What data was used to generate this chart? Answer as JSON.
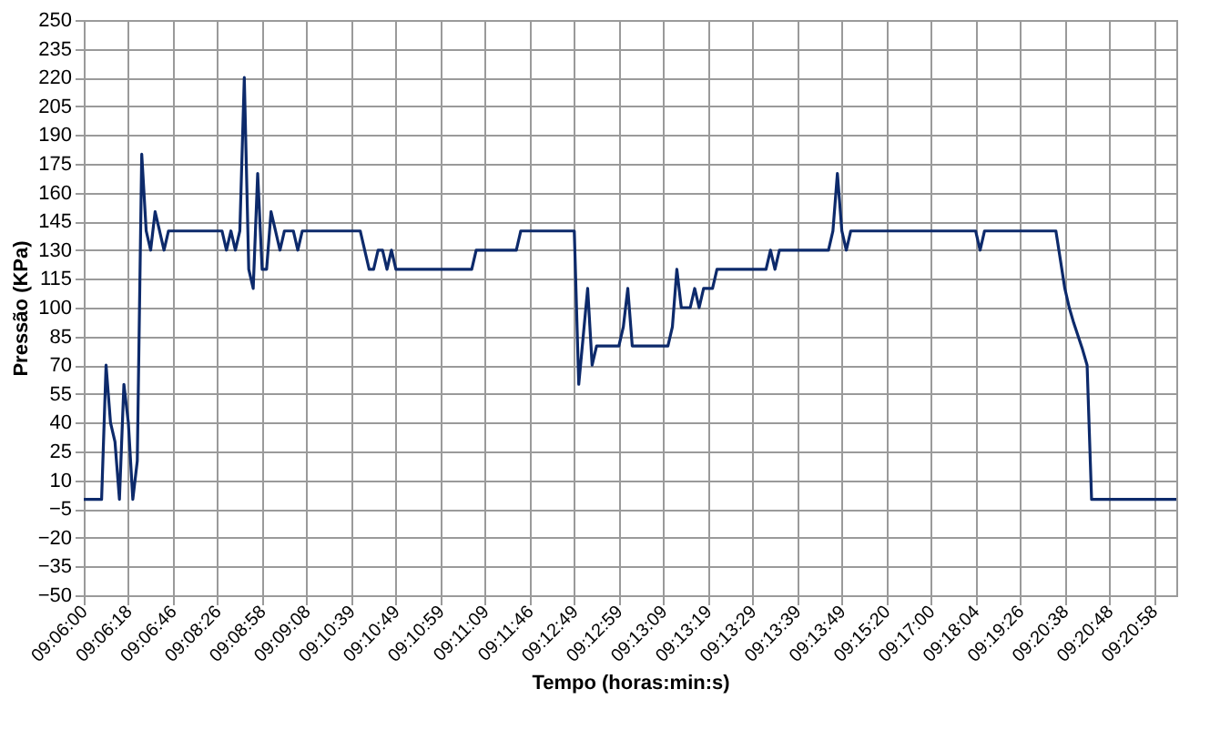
{
  "chart_data": {
    "type": "line",
    "xlabel": "Tempo (horas:min:s)",
    "ylabel": "Pressão (KPa)",
    "color": "#0d2a6b",
    "grid": true,
    "ylim": [
      -50,
      250
    ],
    "yticks": [
      -50,
      -35,
      -20,
      -5,
      10,
      25,
      40,
      55,
      70,
      85,
      100,
      115,
      130,
      145,
      160,
      175,
      190,
      205,
      220,
      235,
      250
    ],
    "categories": [
      "09:06:00",
      null,
      null,
      null,
      null,
      null,
      null,
      null,
      null,
      null,
      "09:06:18",
      null,
      null,
      null,
      null,
      null,
      null,
      null,
      null,
      null,
      "09:06:46",
      null,
      null,
      null,
      null,
      null,
      null,
      null,
      null,
      null,
      "09:08:26",
      null,
      null,
      null,
      null,
      null,
      null,
      null,
      null,
      null,
      "09:08:58",
      null,
      null,
      null,
      null,
      null,
      null,
      null,
      null,
      null,
      "09:09:08",
      null,
      null,
      null,
      null,
      null,
      null,
      null,
      null,
      null,
      "09:10:39",
      null,
      null,
      null,
      null,
      null,
      null,
      null,
      null,
      null,
      "09:10:49",
      null,
      null,
      null,
      null,
      null,
      null,
      null,
      null,
      null,
      "09:10:59",
      null,
      null,
      null,
      null,
      null,
      null,
      null,
      null,
      null,
      "09:11:09",
      null,
      null,
      null,
      null,
      null,
      null,
      null,
      null,
      null,
      "09:11:46",
      null,
      null,
      null,
      null,
      null,
      null,
      null,
      null,
      null,
      "09:12:49",
      null,
      null,
      null,
      null,
      null,
      null,
      null,
      null,
      null,
      "09:12:59",
      null,
      null,
      null,
      null,
      null,
      null,
      null,
      null,
      null,
      "09:13:09",
      null,
      null,
      null,
      null,
      null,
      null,
      null,
      null,
      null,
      "09:13:19",
      null,
      null,
      null,
      null,
      null,
      null,
      null,
      null,
      null,
      "09:13:29",
      null,
      null,
      null,
      null,
      null,
      null,
      null,
      null,
      null,
      "09:13:39",
      null,
      null,
      null,
      null,
      null,
      null,
      null,
      null,
      null,
      "09:13:49",
      null,
      null,
      null,
      null,
      null,
      null,
      null,
      null,
      null,
      "09:15:20",
      null,
      null,
      null,
      null,
      null,
      null,
      null,
      null,
      null,
      "09:17:00",
      null,
      null,
      null,
      null,
      null,
      null,
      null,
      null,
      null,
      "09:18:04",
      null,
      null,
      null,
      null,
      null,
      null,
      null,
      null,
      null,
      "09:19:26",
      null,
      null,
      null,
      null,
      null,
      null,
      null,
      null,
      null,
      "09:20:38",
      null,
      null,
      null,
      null,
      null,
      null,
      null,
      null,
      null,
      "09:20:48",
      null,
      null,
      null,
      null,
      null,
      null,
      null,
      null,
      null,
      "09:20:58",
      null,
      null,
      null,
      null,
      null
    ],
    "values": [
      0,
      0,
      0,
      0,
      0,
      70,
      40,
      30,
      0,
      60,
      40,
      0,
      20,
      180,
      140,
      130,
      150,
      140,
      130,
      140,
      140,
      140,
      140,
      140,
      140,
      140,
      140,
      140,
      140,
      140,
      140,
      140,
      130,
      140,
      130,
      140,
      220,
      120,
      110,
      170,
      120,
      120,
      150,
      140,
      130,
      140,
      140,
      140,
      130,
      140,
      140,
      140,
      140,
      140,
      140,
      140,
      140,
      140,
      140,
      140,
      140,
      140,
      140,
      130,
      120,
      120,
      130,
      130,
      120,
      130,
      120,
      120,
      120,
      120,
      120,
      120,
      120,
      120,
      120,
      120,
      120,
      120,
      120,
      120,
      120,
      120,
      120,
      120,
      130,
      130,
      130,
      130,
      130,
      130,
      130,
      130,
      130,
      130,
      140,
      140,
      140,
      140,
      140,
      140,
      140,
      140,
      140,
      140,
      140,
      140,
      140,
      60,
      85,
      110,
      70,
      80,
      80,
      80,
      80,
      80,
      80,
      90,
      110,
      80,
      80,
      80,
      80,
      80,
      80,
      80,
      80,
      80,
      90,
      120,
      100,
      100,
      100,
      110,
      100,
      110,
      110,
      110,
      120,
      120,
      120,
      120,
      120,
      120,
      120,
      120,
      120,
      120,
      120,
      120,
      130,
      120,
      130,
      130,
      130,
      130,
      130,
      130,
      130,
      130,
      130,
      130,
      130,
      130,
      140,
      170,
      140,
      130,
      140,
      140,
      140,
      140,
      140,
      140,
      140,
      140,
      140,
      140,
      140,
      140,
      140,
      140,
      140,
      140,
      140,
      140,
      140,
      140,
      140,
      140,
      140,
      140,
      140,
      140,
      140,
      140,
      140,
      130,
      140,
      140,
      140,
      140,
      140,
      140,
      140,
      140,
      140,
      140,
      140,
      140,
      140,
      140,
      140,
      140,
      140,
      125,
      110,
      100,
      92,
      85,
      78,
      70,
      0,
      0,
      0,
      0,
      0,
      0,
      0,
      0,
      0,
      0,
      0,
      0,
      0,
      0,
      0,
      0,
      0,
      0,
      0,
      0
    ]
  }
}
